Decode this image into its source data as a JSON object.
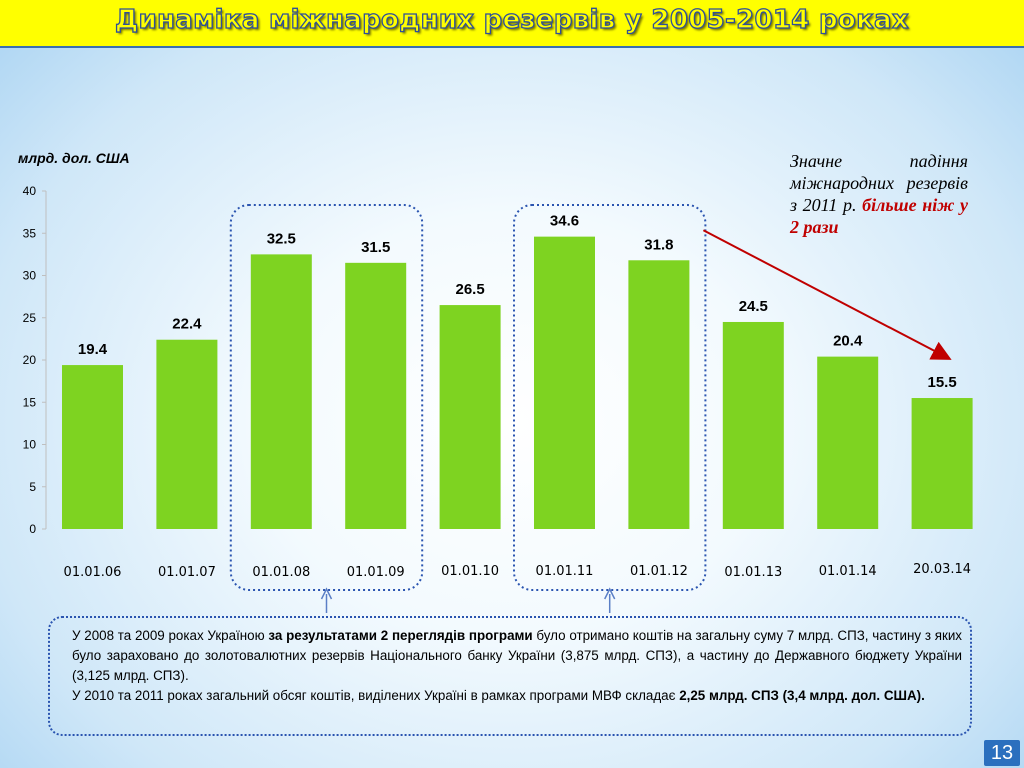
{
  "title": "Динаміка міжнародних резервів у 2005-2014 роках",
  "unit_label": "млрд. дол. США",
  "annotation": {
    "text": "Значне падіння міжнародних резервів з 2011 р.",
    "highlight": "більше ніж у 2 рази"
  },
  "info_box": {
    "p1_before": "У 2008 та 2009 роках Україною ",
    "p1_bold": "за результатами 2 переглядів програми",
    "p1_after": " було отримано коштів на загальну суму 7 млрд. СПЗ, частину з яких було зараховано до золотовалютних резервів Національного банку України (3,875 млрд. СПЗ), а частину до Державного бюджету України (3,125 млрд. СПЗ).",
    "p2_before": "У 2010 та 2011 роках загальний обсяг коштів, виділених Україні в рамках програми МВФ складає ",
    "p2_bold": "2,25 млрд. СПЗ (3,4 млрд. дол. США)."
  },
  "page_number": "13",
  "colors": {
    "bar": "#7ed321",
    "title_bg": "#ffff00",
    "arrow": "#c00000",
    "highlight_box": "#2a54b0"
  },
  "chart_data": {
    "type": "bar",
    "categories": [
      "01.01.06",
      "01.01.07",
      "01.01.08",
      "01.01.09",
      "01.01.10",
      "01.01.11",
      "01.01.12",
      "01.01.13",
      "01.01.14",
      "20.03.14"
    ],
    "values": [
      19.4,
      22.4,
      32.5,
      31.5,
      26.5,
      34.6,
      31.8,
      24.5,
      20.4,
      15.5
    ],
    "value_labels": [
      "19.4",
      "22.4",
      "32.5",
      "31.5",
      "26.5",
      "34.6",
      "31.8",
      "24.5",
      "20.4",
      "15.5"
    ],
    "yticks": [
      "0",
      "5",
      "10",
      "15",
      "20",
      "25",
      "30",
      "35",
      "40"
    ],
    "ylim": [
      0,
      40
    ],
    "ylabel": "млрд. дол. США",
    "grid": false,
    "highlight_groups": [
      [
        "01.01.08",
        "01.01.09"
      ],
      [
        "01.01.11",
        "01.01.12"
      ]
    ],
    "trend_arrow": {
      "from": "01.01.12",
      "to": "20.03.14"
    }
  }
}
